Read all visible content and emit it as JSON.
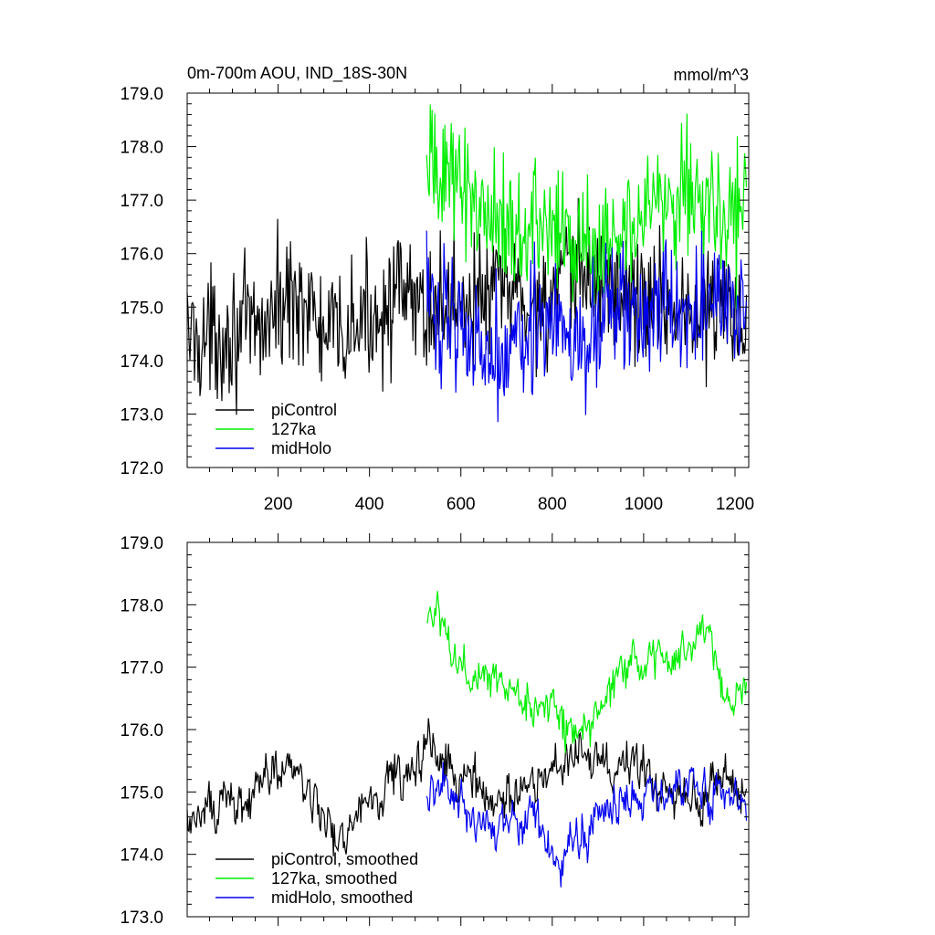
{
  "figure": {
    "title_left": "0m-700m AOU, IND_18S-30N",
    "title_right": "mmol/m^3"
  },
  "colors": {
    "piControl": "#000000",
    "127ka": "#00ee00",
    "midHolo": "#0000ee"
  },
  "chart_data": [
    {
      "type": "line",
      "title": "0m-700m AOU, IND_18S-30N",
      "units": "mmol/m^3",
      "xlim": [
        1,
        1230
      ],
      "ylim": [
        172.0,
        179.0
      ],
      "xticks": [
        200,
        400,
        600,
        800,
        1000,
        1200
      ],
      "xtick_labels": [
        "200",
        "400",
        "600",
        "800",
        "1000",
        "1200"
      ],
      "yticks": [
        172.0,
        173.0,
        174.0,
        175.0,
        176.0,
        177.0,
        178.0,
        179.0
      ],
      "ytick_labels": [
        "172.0",
        "173.0",
        "174.0",
        "175.0",
        "176.0",
        "177.0",
        "178.0",
        "179.0"
      ],
      "legend_position": "lower-left",
      "series": [
        {
          "name": "piControl",
          "color": "#000000",
          "x": [
            1,
            50,
            100,
            150,
            200,
            250,
            300,
            350,
            400,
            450,
            500,
            550,
            600,
            650,
            700,
            750,
            800,
            850,
            900,
            950,
            1000,
            1050,
            1100,
            1150,
            1200,
            1225
          ],
          "y": [
            174.5,
            174.4,
            174.6,
            174.5,
            175.0,
            175.3,
            174.4,
            174.5,
            174.8,
            175.2,
            175.0,
            175.0,
            175.2,
            175.1,
            175.4,
            175.0,
            175.2,
            175.6,
            175.5,
            175.3,
            175.1,
            175.2,
            174.8,
            175.0,
            174.9,
            174.8
          ],
          "amplitude": 0.6
        },
        {
          "name": "127ka",
          "color": "#00ee00",
          "x": [
            525,
            550,
            600,
            650,
            700,
            750,
            800,
            850,
            900,
            950,
            1000,
            1050,
            1100,
            1150,
            1200,
            1225
          ],
          "y": [
            177.4,
            177.6,
            177.4,
            176.8,
            176.6,
            176.5,
            176.5,
            176.0,
            176.2,
            176.6,
            176.9,
            177.1,
            177.3,
            176.9,
            176.6,
            176.9
          ],
          "amplitude": 0.6
        },
        {
          "name": "midHolo",
          "color": "#0000ee",
          "x": [
            525,
            550,
            600,
            650,
            700,
            750,
            800,
            850,
            900,
            950,
            1000,
            1050,
            1100,
            1150,
            1200,
            1225
          ],
          "y": [
            175.1,
            175.0,
            174.8,
            174.2,
            174.3,
            174.8,
            174.6,
            174.2,
            174.7,
            174.9,
            174.8,
            174.9,
            175.0,
            175.0,
            175.0,
            174.8
          ],
          "amplitude": 0.6
        }
      ]
    },
    {
      "type": "line",
      "xlim": [
        1,
        1230
      ],
      "ylim": [
        173.0,
        179.0
      ],
      "xticks": [
        200,
        400,
        600,
        800,
        1000,
        1200
      ],
      "yticks": [
        173.0,
        174.0,
        175.0,
        176.0,
        177.0,
        178.0,
        179.0
      ],
      "ytick_labels": [
        "173.0",
        "174.0",
        "175.0",
        "176.0",
        "177.0",
        "178.0",
        "179.0"
      ],
      "legend_position": "lower-left",
      "series": [
        {
          "name": "piControl, smoothed",
          "color": "#000000",
          "x": [
            1,
            40,
            80,
            120,
            160,
            200,
            250,
            300,
            330,
            380,
            430,
            480,
            530,
            580,
            630,
            680,
            730,
            780,
            830,
            880,
            930,
            980,
            1030,
            1080,
            1130,
            1180,
            1225
          ],
          "y": [
            174.5,
            174.7,
            175.0,
            174.6,
            175.2,
            175.4,
            175.3,
            174.6,
            174.2,
            174.8,
            175.1,
            175.3,
            175.7,
            175.5,
            175.1,
            174.9,
            175.0,
            175.1,
            175.5,
            175.6,
            175.3,
            175.5,
            175.1,
            174.9,
            175.0,
            175.2,
            174.9
          ],
          "amplitude": 0.35
        },
        {
          "name": "127ka, smoothed",
          "color": "#00ee00",
          "x": [
            525,
            550,
            580,
            620,
            660,
            700,
            740,
            780,
            820,
            860,
            900,
            940,
            980,
            1020,
            1060,
            1100,
            1140,
            1170,
            1190,
            1225
          ],
          "y": [
            177.6,
            177.8,
            177.3,
            176.7,
            176.9,
            176.7,
            176.5,
            176.6,
            176.2,
            175.9,
            176.3,
            176.8,
            177.0,
            177.2,
            176.9,
            177.3,
            177.6,
            176.6,
            176.4,
            176.8
          ],
          "amplitude": 0.35
        },
        {
          "name": "midHolo, smoothed",
          "color": "#0000ee",
          "x": [
            525,
            560,
            600,
            640,
            680,
            720,
            760,
            800,
            830,
            860,
            900,
            940,
            980,
            1020,
            1060,
            1100,
            1140,
            1180,
            1225
          ],
          "y": [
            174.9,
            175.1,
            174.8,
            174.3,
            174.5,
            174.7,
            174.6,
            174.2,
            173.8,
            174.3,
            174.6,
            174.8,
            174.8,
            174.9,
            175.0,
            175.1,
            175.0,
            174.8,
            174.9
          ],
          "amplitude": 0.35
        }
      ]
    }
  ]
}
